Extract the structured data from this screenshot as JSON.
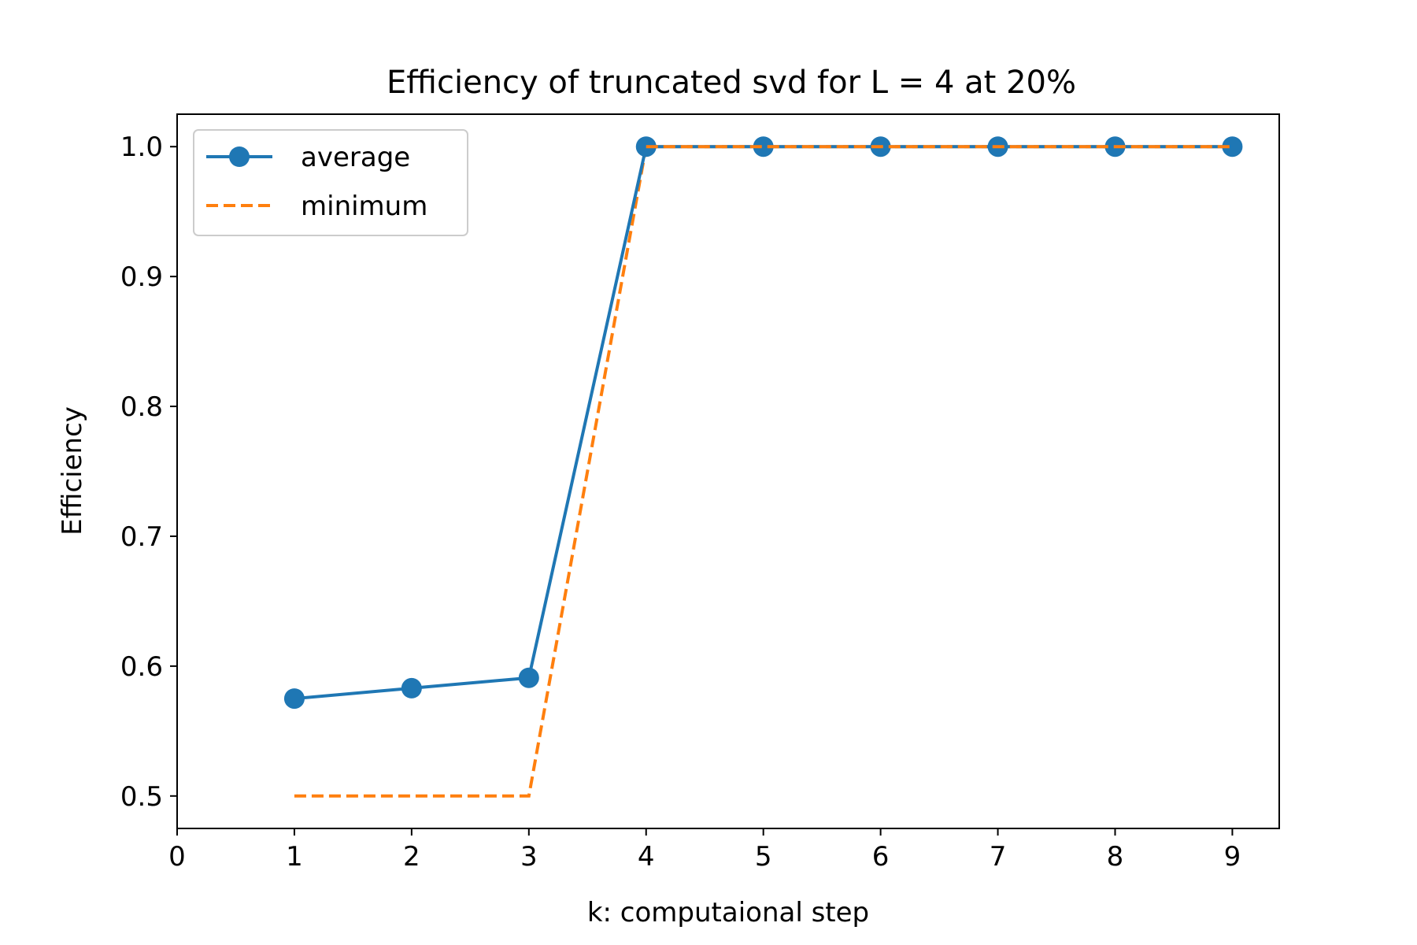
{
  "chart_data": {
    "type": "line",
    "title": "Efficiency of truncated svd for L = 4 at 20%",
    "xlabel": "k: computaional step",
    "ylabel": "Efficiency",
    "xlim": [
      0,
      9.4
    ],
    "ylim": [
      0.475,
      1.025
    ],
    "xticks": [
      "0",
      "1",
      "2",
      "3",
      "4",
      "5",
      "6",
      "7",
      "8",
      "9"
    ],
    "yticks": [
      "0.5",
      "0.6",
      "0.7",
      "0.8",
      "0.9",
      "1.0"
    ],
    "grid": false,
    "legend_position": "top-left",
    "x": [
      1,
      2,
      3,
      4,
      5,
      6,
      7,
      8,
      9
    ],
    "series": [
      {
        "name": "average",
        "values": [
          0.575,
          0.583,
          0.591,
          1.0,
          1.0,
          1.0,
          1.0,
          1.0,
          1.0
        ],
        "color": "#1f77b4",
        "style": "solid",
        "marker": "circle"
      },
      {
        "name": "minimum",
        "values": [
          0.5,
          0.5,
          0.5,
          1.0,
          1.0,
          1.0,
          1.0,
          1.0,
          1.0
        ],
        "color": "#ff7f0e",
        "style": "dashed",
        "marker": "none"
      }
    ]
  }
}
